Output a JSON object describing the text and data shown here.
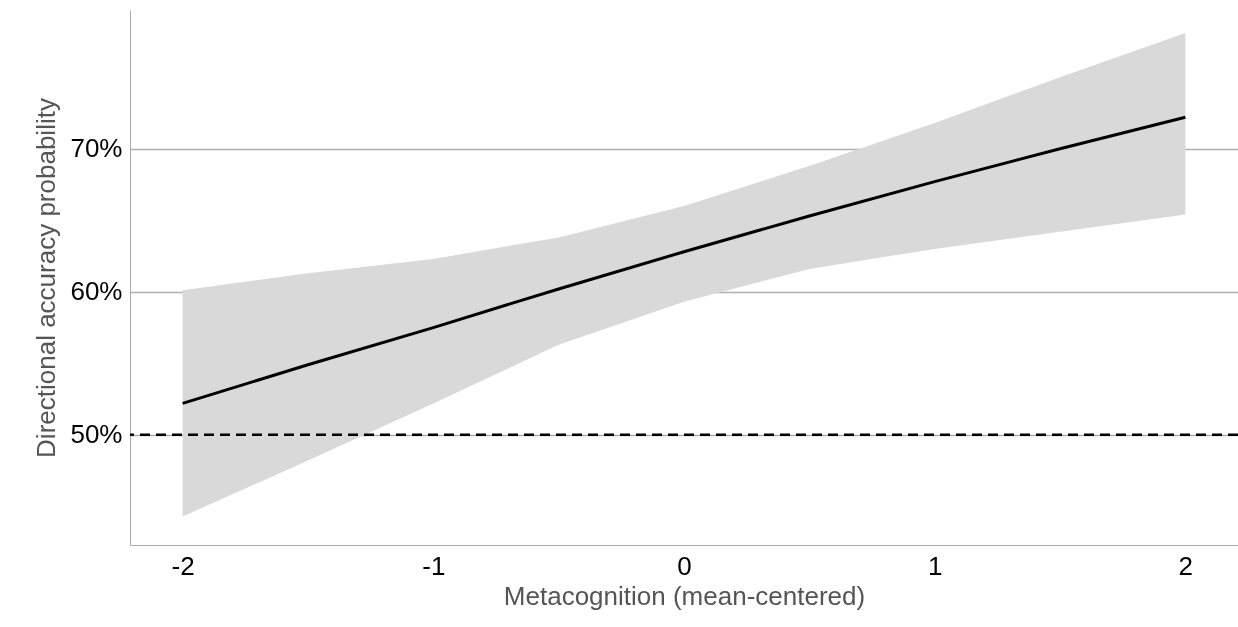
{
  "chart_data": {
    "type": "line",
    "xlabel": "Metacognition (mean-centered)",
    "ylabel": "Directional accuracy probability",
    "x": [
      -2,
      -1.5,
      -1,
      -0.5,
      0,
      0.5,
      1,
      1.5,
      2
    ],
    "series": [
      {
        "color": "#000000",
        "values": [
          52.2,
          54.9,
          57.5,
          60.2,
          62.8,
          65.3,
          67.7,
          70.0,
          72.2
        ],
        "lower": [
          44.3,
          48.2,
          52.2,
          56.3,
          59.3,
          61.6,
          63.0,
          64.2,
          65.4
        ],
        "upper": [
          60.1,
          61.3,
          62.3,
          63.8,
          66.0,
          68.8,
          71.8,
          75.0,
          78.1
        ]
      }
    ],
    "xlim": [
      -2.21,
      2.21
    ],
    "ylim": [
      42.3,
      79.7
    ],
    "xticks": [
      -2,
      -1,
      0,
      1,
      2
    ],
    "yticks": [
      {
        "value": 50,
        "label": "50%"
      },
      {
        "value": 60,
        "label": "60%"
      },
      {
        "value": 70,
        "label": "70%"
      }
    ],
    "grid": "y",
    "line_style": "solid",
    "ref_lines": [
      {
        "axis": "y",
        "value": 50,
        "color": "#000000",
        "line_style": "dashed"
      }
    ]
  }
}
